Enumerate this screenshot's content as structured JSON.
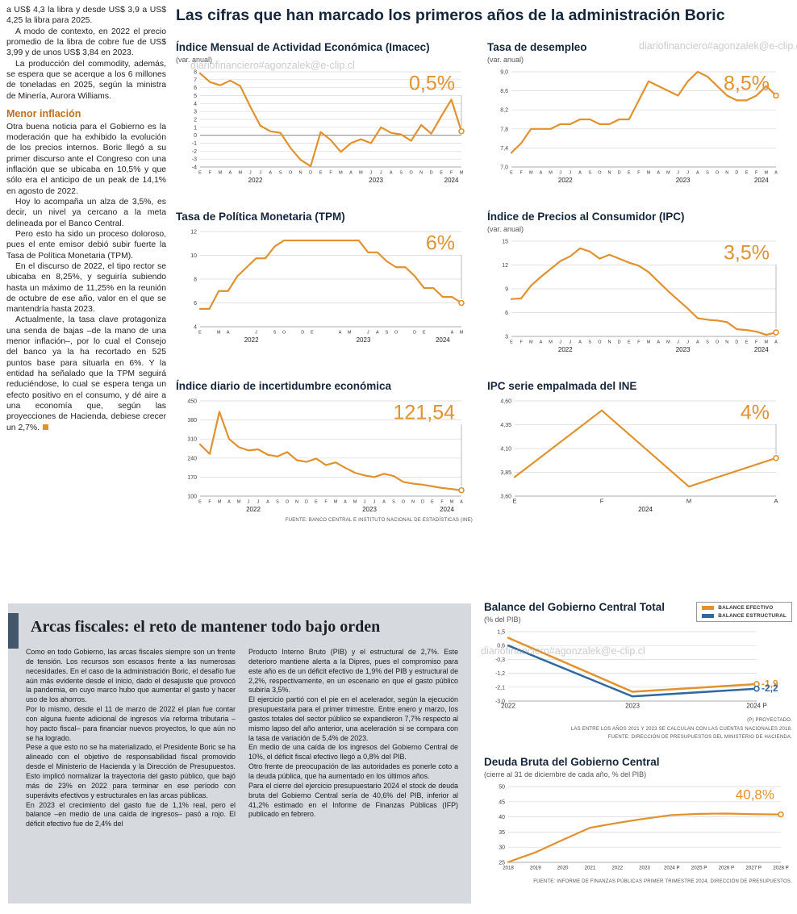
{
  "watermark": "diariofinanciero#agonzalek@e-clip.cl",
  "main_title": "Las cifras que han marcado los primeros años de la administración Boric",
  "colors": {
    "accent_orange": "#E0922F",
    "accent_blue": "#31699F",
    "title_navy": "#15263B",
    "heading_orange": "#BE6F1E",
    "section_bar": "#44566B"
  },
  "left_column": {
    "paragraphs_top": [
      "a US$ 4,3 la libra y desde US$ 3,9 a US$ 4,25 la libra para 2025.",
      "A modo de contexto, en 2022 el precio promedio de la libra de cobre fue de US$ 3,99 y de unos US$ 3,84 en 2023.",
      "La producción del commodity, además, se espera que se acerque a los 6 millones de toneladas en 2025, según la ministra de Minería, Aurora Williams."
    ],
    "subheading": "Menor inflación",
    "paragraphs_bottom": [
      "Otra buena noticia para el Gobierno es la moderación que ha exhibido la evolución de los precios internos. Boric llegó a su primer discurso ante el Congreso con una inflación que se ubicaba en 10,5% y que sólo era el anticipo de un peak de 14,1% en agosto de 2022.",
      "Hoy lo acompaña un alza de 3,5%, es decir, un nivel ya cercano a la meta delineada por el Banco Central.",
      "Pero esto ha sido un proceso doloroso, pues el ente emisor debió subir fuerte la Tasa de Política Monetaria (TPM).",
      "En el discurso de 2022, el tipo rector se ubicaba en 8,25%, y seguiría subiendo hasta un máximo de 11,25% en la reunión de octubre de ese año, valor en el que se mantendría hasta 2023.",
      "Actualmente, la tasa clave protagoniza una senda de bajas –de la mano de una menor inflación–, por lo cual el Consejo del banco ya la ha recortado en 525 puntos base para situarla en 6%. Y la entidad ha señalado que la TPM seguirá reduciéndose, lo cual se espera tenga un efecto positivo en el consumo, y dé aire a una economía que, según las proyecciones de Hacienda, debiese crecer un 2,7%."
    ]
  },
  "fiscal_section": {
    "title": "Arcas fiscales: el reto de mantener todo bajo orden",
    "col1": [
      "Como en todo Gobierno, las arcas fiscales siempre son un frente de tensión. Los recursos son escasos frente a las numerosas necesidades. En el caso de la administración Boric, el desafío fue aún más evidente desde el inicio, dado el desajuste que provocó la pandemia, en cuyo marco hubo que aumentar el gasto y hacer uso de los ahorros.",
      "Por lo mismo, desde el 11 de marzo de 2022 el plan fue contar con alguna fuente adicional de ingresos vía reforma tributaria –hoy pacto fiscal– para financiar nuevos proyectos, lo que aún no se ha logrado.",
      "Pese a que esto no se ha materializado, el Presidente Boric se ha alineado con el objetivo de responsabilidad fiscal promovido desde el Ministerio de Hacienda y la Dirección de Presupuestos. Esto implicó normalizar la trayectoria del gasto público, que bajó más de 23% en 2022 para terminar en ese período con superávits efectivos y estructurales en las arcas públicas.",
      "En 2023 el crecimiento del gasto fue de 1,1% real, pero el balance –en medio de una caída de ingresos– pasó a rojo. El déficit efectivo fue de 2,4% del"
    ],
    "col2": [
      "Producto Interno Bruto (PIB) y el estructural de 2,7%. Este deterioro mantiene alerta a la Dipres, pues el compromiso para este año es de un déficit efectivo de 1,9% del PIB y estructural de 2,2%, respectivamente, en un escenario en que el gasto público subiría 3,5%.",
      "El ejercicio partió con el pie en el acelerador, según la ejecución presupuestaria para el primer trimestre. Entre enero y marzo, los gastos totales del sector público se expandieron 7,7% respecto al mismo lapso del año anterior, una aceleración si se compara con la tasa de variación de 5,4% de 2023.",
      "En medio de una caída de los ingresos del Gobierno Central de 10%, el déficit fiscal efectivo llegó a 0,8% del PIB.",
      "Otro frente de preocupación de las autoridades es ponerle coto a la deuda pública, que ha aumentado en los últimos años.",
      "Para el cierre del ejercicio presupuestario 2024 el stock de deuda bruta del Gobierno Central sería de 40,6% del PIB, inferior al 41,2% estimado en el Informe de Finanzas Públicas (IFP) publicado en febrero."
    ]
  },
  "chart_data": [
    {
      "id": "imacec",
      "type": "line",
      "title": "Índice Mensual de Actividad Económica (Imacec)",
      "subtitle": "(var. anual)",
      "ylim": [
        -4,
        8
      ],
      "y_ticks": [
        8,
        7,
        6,
        5,
        4,
        3,
        2,
        1,
        0,
        -1,
        -2,
        -3,
        -4
      ],
      "y_tick_labels": [
        "8",
        "7",
        "6",
        "5",
        "4",
        "3",
        "2",
        "1",
        "0",
        "-1",
        "-2",
        "-3",
        "-4"
      ],
      "x_labels": [
        "E",
        "F",
        "M",
        "A",
        "M",
        "J",
        "J",
        "A",
        "S",
        "O",
        "N",
        "D",
        "E",
        "F",
        "M",
        "A",
        "M",
        "J",
        "J",
        "A",
        "S",
        "O",
        "N",
        "D",
        "E",
        "F",
        "M"
      ],
      "years": [
        {
          "label": "2022",
          "from": 0,
          "to": 11
        },
        {
          "label": "2023",
          "from": 12,
          "to": 23
        },
        {
          "label": "2024",
          "from": 24,
          "to": 26
        }
      ],
      "series": [
        {
          "name": "Imacec var. anual",
          "color": "orange",
          "values": [
            7.8,
            6.7,
            6.3,
            6.9,
            6.2,
            3.6,
            1.2,
            0.5,
            0.3,
            -1.6,
            -3.1,
            -3.9,
            0.4,
            -0.6,
            -2.1,
            -1.0,
            -0.5,
            -1.0,
            1.0,
            0.3,
            0.1,
            -0.7,
            1.3,
            0.2,
            2.4,
            4.5,
            0.5
          ]
        }
      ],
      "callout": "0,5%",
      "zero_line": true
    },
    {
      "id": "desempleo",
      "type": "line",
      "title": "Tasa de desempleo",
      "subtitle": "(var. anual)",
      "ylim": [
        7.0,
        9.0
      ],
      "y_ticks": [
        9.0,
        8.6,
        8.2,
        7.8,
        7.4,
        7.0
      ],
      "y_tick_labels": [
        "9,0",
        "8,6",
        "8,2",
        "7,8",
        "7,4",
        "7,0"
      ],
      "x_labels": [
        "E",
        "F",
        "M",
        "A",
        "M",
        "J",
        "J",
        "A",
        "S",
        "O",
        "N",
        "D",
        "E",
        "F",
        "M",
        "A",
        "M",
        "J",
        "J",
        "A",
        "S",
        "O",
        "N",
        "D",
        "E",
        "F",
        "M",
        "A"
      ],
      "years": [
        {
          "label": "2022",
          "from": 0,
          "to": 11
        },
        {
          "label": "2023",
          "from": 12,
          "to": 23
        },
        {
          "label": "2024",
          "from": 24,
          "to": 27
        }
      ],
      "series": [
        {
          "name": "Tasa de desempleo",
          "color": "orange",
          "values": [
            7.3,
            7.5,
            7.8,
            7.8,
            7.8,
            7.9,
            7.9,
            8.0,
            8.0,
            7.9,
            7.9,
            8.0,
            8.0,
            8.4,
            8.8,
            8.7,
            8.6,
            8.5,
            8.8,
            9.0,
            8.9,
            8.7,
            8.5,
            8.4,
            8.4,
            8.5,
            8.7,
            8.5
          ]
        }
      ],
      "callout": "8,5%"
    },
    {
      "id": "tpm",
      "type": "line",
      "title": "Tasa de Política Monetaria (TPM)",
      "ylim": [
        4,
        12
      ],
      "y_ticks": [
        12,
        10,
        8,
        6,
        4
      ],
      "y_tick_labels": [
        "12",
        "10",
        "8",
        "6",
        "4"
      ],
      "x_labels": [
        "E",
        "",
        "M",
        "A",
        "",
        "",
        "J",
        "",
        "S",
        "O",
        "",
        "D",
        "E",
        "",
        "",
        "A",
        "M",
        "",
        "J",
        "A",
        "S",
        "O",
        "",
        "D",
        "E",
        "",
        "",
        "A",
        "M"
      ],
      "years": [
        {
          "label": "2022",
          "from": 0,
          "to": 11
        },
        {
          "label": "2023",
          "from": 12,
          "to": 23
        },
        {
          "label": "2024",
          "from": 24,
          "to": 28
        }
      ],
      "series": [
        {
          "name": "TPM",
          "color": "orange",
          "values": [
            5.5,
            5.5,
            7.0,
            7.0,
            8.25,
            9.0,
            9.75,
            9.75,
            10.75,
            11.25,
            11.25,
            11.25,
            11.25,
            11.25,
            11.25,
            11.25,
            11.25,
            11.25,
            10.25,
            10.25,
            9.5,
            9.0,
            9.0,
            8.25,
            7.25,
            7.25,
            6.5,
            6.5,
            6.0
          ]
        }
      ],
      "callout": "6%"
    },
    {
      "id": "ipc",
      "type": "line",
      "title": "Índice de Precios al Consumidor (IPC)",
      "subtitle": "(var. anual)",
      "ylim": [
        3,
        15
      ],
      "y_ticks": [
        15,
        12,
        9,
        6,
        3
      ],
      "y_tick_labels": [
        "15",
        "12",
        "9",
        "6",
        "3"
      ],
      "x_labels": [
        "E",
        "F",
        "M",
        "A",
        "M",
        "J",
        "J",
        "A",
        "S",
        "O",
        "N",
        "D",
        "E",
        "F",
        "M",
        "A",
        "M",
        "J",
        "J",
        "A",
        "S",
        "O",
        "N",
        "D",
        "E",
        "F",
        "M",
        "A"
      ],
      "years": [
        {
          "label": "2022",
          "from": 0,
          "to": 11
        },
        {
          "label": "2023",
          "from": 12,
          "to": 23
        },
        {
          "label": "2024",
          "from": 24,
          "to": 27
        }
      ],
      "series": [
        {
          "name": "IPC var. anual",
          "color": "orange",
          "values": [
            7.7,
            7.8,
            9.4,
            10.5,
            11.5,
            12.5,
            13.1,
            14.1,
            13.7,
            12.8,
            13.3,
            12.8,
            12.3,
            11.9,
            11.1,
            9.9,
            8.7,
            7.6,
            6.5,
            5.3,
            5.1,
            5.0,
            4.8,
            3.9,
            3.8,
            3.6,
            3.2,
            3.5
          ]
        }
      ],
      "callout": "3,5%"
    },
    {
      "id": "incertidumbre",
      "type": "line",
      "title": "Índice diario de incertidumbre económica",
      "ylim": [
        100,
        450
      ],
      "y_ticks": [
        450,
        380,
        310,
        240,
        170,
        100
      ],
      "y_tick_labels": [
        "450",
        "380",
        "310",
        "240",
        "170",
        "100"
      ],
      "x_labels": [
        "E",
        "F",
        "M",
        "A",
        "M",
        "J",
        "J",
        "A",
        "S",
        "O",
        "N",
        "D",
        "E",
        "F",
        "M",
        "A",
        "M",
        "J",
        "J",
        "A",
        "S",
        "O",
        "N",
        "D",
        "E",
        "F",
        "M",
        "A"
      ],
      "years": [
        {
          "label": "2022",
          "from": 0,
          "to": 11
        },
        {
          "label": "2023",
          "from": 12,
          "to": 23
        },
        {
          "label": "2024",
          "from": 24,
          "to": 27
        }
      ],
      "series": [
        {
          "name": "Incertidumbre económica",
          "color": "orange",
          "values": [
            290,
            255,
            410,
            310,
            280,
            268,
            272,
            252,
            246,
            262,
            232,
            226,
            238,
            214,
            224,
            204,
            186,
            176,
            170,
            182,
            174,
            152,
            146,
            142,
            136,
            130,
            126,
            121.54
          ]
        }
      ],
      "callout": "121,54",
      "source": "FUENTE: BANCO CENTRAL E INSTITUTO NACIONAL DE ESTADÍSTICAS (INE)"
    },
    {
      "id": "ipc-ine",
      "type": "line",
      "title": "IPC serie empalmada del INE",
      "ylim": [
        3.6,
        4.6
      ],
      "y_ticks": [
        4.6,
        4.35,
        4.1,
        3.85,
        3.6
      ],
      "y_tick_labels": [
        "4,60",
        "4,35",
        "4,10",
        "3,85",
        "3,60"
      ],
      "x_labels": [
        "E",
        "F",
        "M",
        "A"
      ],
      "years": [
        {
          "label": "2024",
          "from": 0,
          "to": 3
        }
      ],
      "series": [
        {
          "name": "IPC serie empalmada",
          "color": "orange",
          "values": [
            3.8,
            4.5,
            3.7,
            4.0
          ]
        }
      ],
      "callout": "4%",
      "ml": 34
    },
    {
      "id": "balance-gobierno-central",
      "type": "line",
      "title": "Balance del Gobierno Central Total",
      "subtitle": "(% del PIB)",
      "ylim": [
        -3.0,
        1.5
      ],
      "y_ticks": [
        1.5,
        0.6,
        -0.3,
        -1.2,
        -2.1,
        -3.0
      ],
      "y_tick_labels": [
        "1,5",
        "0,6",
        "-0,3",
        "-1,2",
        "-2,1",
        "-3,0"
      ],
      "x_labels": [
        "2022",
        "2023",
        "2024 P"
      ],
      "series": [
        {
          "name": "Balance efectivo",
          "color": "orange",
          "values": [
            1.1,
            -2.4,
            -1.9
          ],
          "end_label": "-1,9"
        },
        {
          "name": "Balance estructural",
          "color": "blue",
          "values": [
            0.6,
            -2.7,
            -2.2
          ],
          "end_label": "-2,2"
        }
      ],
      "legend": [
        {
          "label": "BALANCE EFECTIVO",
          "color": "orange"
        },
        {
          "label": "BALANCE ESTRUCTURAL",
          "color": "blue"
        }
      ],
      "notes": [
        "(P) PROYECTADO.",
        "LAS ENTRE LOS AÑOS 2021 Y 2023 SE CALCULAN  CON LAS CUENTAS NACIONALES 2018.",
        "FUENTE: DIRECCIÓN DE PRESUPUESTOS DEL MINISTERIO DE HACIENDA."
      ],
      "ph": 112,
      "mr": 44,
      "lw": 2.5,
      "x_font": 8
    },
    {
      "id": "deuda-bruta",
      "type": "line",
      "title": "Deuda Bruta del Gobierno Central",
      "subtitle": "(cierre al 31 de diciembre de cada año, % del PIB)",
      "ylim": [
        25,
        50
      ],
      "y_ticks": [
        50,
        45,
        40,
        35,
        30,
        25
      ],
      "y_tick_labels": [
        "50",
        "45",
        "40",
        "35",
        "30",
        "25"
      ],
      "x_labels": [
        "2018",
        "2019",
        "2020",
        "2021",
        "2022",
        "2023",
        "2024 P",
        "2025 P",
        "2026 P",
        "2027 P",
        "2028 P"
      ],
      "series": [
        {
          "name": "Deuda bruta",
          "color": "orange",
          "values": [
            25.1,
            28.3,
            32.4,
            36.4,
            38.0,
            39.4,
            40.6,
            41.0,
            41.1,
            40.9,
            40.8
          ]
        }
      ],
      "callout": "40,8%",
      "callout_size": 17,
      "callout_line": false,
      "source": "FUENTE: INFORME DE FINANZAS PÚBLICAS PRIMER TRIMESTRE 2024, DIRECCIÓN DE PRESUPUESTOS.",
      "ph": 120,
      "x_font": 6.2
    }
  ]
}
